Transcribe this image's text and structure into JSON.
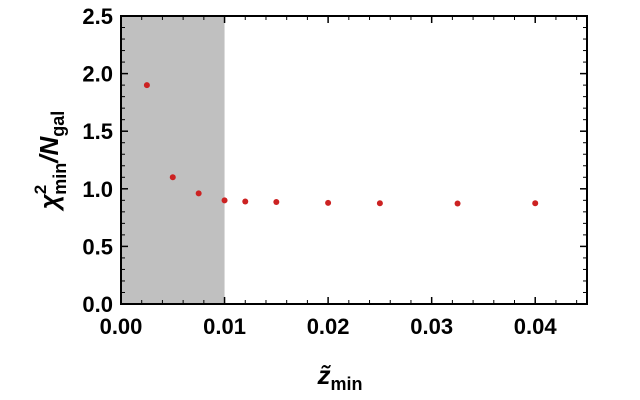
{
  "chart_data": {
    "type": "scatter",
    "xlabel": {
      "main": "z̃",
      "sub": "min"
    },
    "ylabel": {
      "main": "χ",
      "sup": "2",
      "sub": "min",
      "rest": "/N",
      "rest_sub": "gal"
    },
    "xlim": [
      0,
      0.045
    ],
    "ylim": [
      0,
      2.5
    ],
    "xticks": [
      "0.00",
      "0.01",
      "0.02",
      "0.03",
      "0.04"
    ],
    "xtick_values": [
      0,
      0.01,
      0.02,
      0.03,
      0.04
    ],
    "yticks": [
      "0.0",
      "0.5",
      "1.0",
      "1.5",
      "2.0",
      "2.5"
    ],
    "ytick_values": [
      0,
      0.5,
      1.0,
      1.5,
      2.0,
      2.5
    ],
    "shaded_region": {
      "x": [
        0,
        0.01
      ],
      "color": "#c0c0c0"
    },
    "series": [
      {
        "color": "#cc2222",
        "points": [
          {
            "x": 0.0025,
            "y": 1.9
          },
          {
            "x": 0.005,
            "y": 1.1
          },
          {
            "x": 0.0075,
            "y": 0.96
          },
          {
            "x": 0.01,
            "y": 0.9
          },
          {
            "x": 0.012,
            "y": 0.89
          },
          {
            "x": 0.015,
            "y": 0.885
          },
          {
            "x": 0.02,
            "y": 0.878
          },
          {
            "x": 0.025,
            "y": 0.875
          },
          {
            "x": 0.0325,
            "y": 0.872
          },
          {
            "x": 0.04,
            "y": 0.875
          }
        ]
      }
    ],
    "grid": false,
    "legend": "none"
  }
}
